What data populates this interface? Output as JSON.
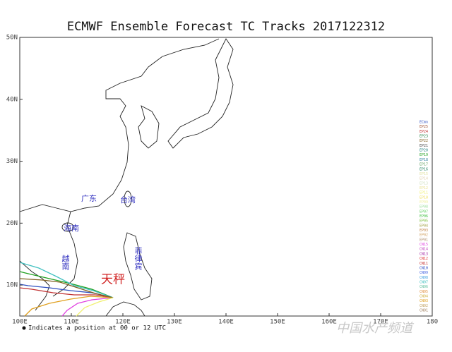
{
  "title": "ECMWF Ensemble Forecast TC Tracks 2017122312",
  "map": {
    "xlim": [
      100,
      180
    ],
    "ylim": [
      5,
      50
    ],
    "xticks": [
      {
        "value": 100,
        "label": "100E"
      },
      {
        "value": 110,
        "label": "110E"
      },
      {
        "value": 120,
        "label": "120E"
      },
      {
        "value": 130,
        "label": "130E"
      },
      {
        "value": 140,
        "label": "140E"
      },
      {
        "value": 150,
        "label": "150E"
      },
      {
        "value": 160,
        "label": "160E"
      },
      {
        "value": 170,
        "label": "170E"
      },
      {
        "value": 180,
        "label": "180"
      }
    ],
    "yticks": [
      {
        "value": 10,
        "label": "10N"
      },
      {
        "value": 20,
        "label": "20N"
      },
      {
        "value": 30,
        "label": "30N"
      },
      {
        "value": 40,
        "label": "40N"
      },
      {
        "value": 50,
        "label": "50N"
      }
    ]
  },
  "places": [
    "广东",
    "台湾",
    "海南",
    "越南",
    "菲律宾",
    "天秤"
  ],
  "legend": [
    {
      "name": "ECmn",
      "color": "#3050c0"
    },
    {
      "name": "EP25",
      "color": "#a05030"
    },
    {
      "name": "EP24",
      "color": "#c03030"
    },
    {
      "name": "EP23",
      "color": "#208040"
    },
    {
      "name": "EP22",
      "color": "#806020"
    },
    {
      "name": "EP21",
      "color": "#404040"
    },
    {
      "name": "EP20",
      "color": "#208080"
    },
    {
      "name": "EP19",
      "color": "#20a020"
    },
    {
      "name": "EP18",
      "color": "#3080a0"
    },
    {
      "name": "EP17",
      "color": "#60a060"
    },
    {
      "name": "EP16",
      "color": "#208060"
    },
    {
      "name": "EP15",
      "color": "#e0e0a0"
    },
    {
      "name": "EP14",
      "color": "#e0d0b0"
    },
    {
      "name": "EP13",
      "color": "#d0e0c0"
    },
    {
      "name": "EP12",
      "color": "#e8e090"
    },
    {
      "name": "EP11",
      "color": "#f0f070"
    },
    {
      "name": "EP10",
      "color": "#f0e060"
    },
    {
      "name": "EP09",
      "color": "#f0f0a0"
    },
    {
      "name": "EP08",
      "color": "#a0e0a0"
    },
    {
      "name": "EP07",
      "color": "#60d060"
    },
    {
      "name": "EP06",
      "color": "#40c040"
    },
    {
      "name": "EP05",
      "color": "#80c040"
    },
    {
      "name": "EP04",
      "color": "#a0a040"
    },
    {
      "name": "EP03",
      "color": "#c08040"
    },
    {
      "name": "EP02",
      "color": "#d0a060"
    },
    {
      "name": "EP01",
      "color": "#b09070"
    },
    {
      "name": "CN15",
      "color": "#e040e0"
    },
    {
      "name": "CN14",
      "color": "#c040c0"
    },
    {
      "name": "CN13",
      "color": "#a020a0"
    },
    {
      "name": "CN12",
      "color": "#e03030"
    },
    {
      "name": "CN11",
      "color": "#c02020"
    },
    {
      "name": "CN10",
      "color": "#2040c0"
    },
    {
      "name": "CN09",
      "color": "#4060e0"
    },
    {
      "name": "CN08",
      "color": "#40a0e0"
    },
    {
      "name": "CN07",
      "color": "#40c0c0"
    },
    {
      "name": "CN06",
      "color": "#60c0a0"
    },
    {
      "name": "CN05",
      "color": "#e09040"
    },
    {
      "name": "CN04",
      "color": "#d0b040"
    },
    {
      "name": "CN03",
      "color": "#e0a020"
    },
    {
      "name": "CN02",
      "color": "#c0a060"
    },
    {
      "name": "CN01",
      "color": "#a08060"
    }
  ],
  "footnote": "Indicates a position at 00 or 12 UTC",
  "watermark": "中国水产频道"
}
